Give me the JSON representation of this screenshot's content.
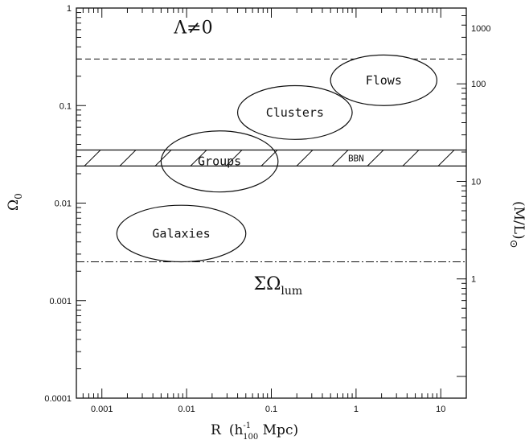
{
  "chart_data": {
    "type": "scatter",
    "xlabel_main": "R",
    "xlabel_unit_pre": "(h",
    "xlabel_unit_sup": "-1",
    "xlabel_unit_sub": "100",
    "xlabel_unit_post": " Mpc)",
    "ylabel_left": "Ω",
    "ylabel_left_sub": "0",
    "ylabel_right": "(M/L)",
    "ylabel_right_sub": "⊙",
    "x_scale": "log",
    "y_scale": "log",
    "xlim": [
      0.0005,
      20
    ],
    "ylim": [
      0.0001,
      1
    ],
    "x_ticks": [
      {
        "value": 0.001,
        "label": "0.001"
      },
      {
        "value": 0.01,
        "label": "0.01"
      },
      {
        "value": 0.1,
        "label": "0.1"
      },
      {
        "value": 1,
        "label": "1"
      },
      {
        "value": 10,
        "label": "10"
      }
    ],
    "y_ticks": [
      {
        "value": 0.0001,
        "label": "0.0001"
      },
      {
        "value": 0.001,
        "label": "0.001"
      },
      {
        "value": 0.01,
        "label": "0.01"
      },
      {
        "value": 0.1,
        "label": "0.1"
      },
      {
        "value": 1,
        "label": "1"
      }
    ],
    "right_axis": {
      "ticks": [
        {
          "omega": 0.00167,
          "label": "1"
        },
        {
          "omega": 0.0167,
          "label": "10"
        },
        {
          "omega": 0.167,
          "label": "100"
        },
        {
          "omega": 1.67,
          "label": "1000"
        }
      ]
    },
    "regions": [
      {
        "name": "Galaxies",
        "label": "Galaxies",
        "x_range": [
          0.0015,
          0.05
        ],
        "y_range": [
          0.0025,
          0.0095
        ]
      },
      {
        "name": "Groups",
        "label": "Groups",
        "x_range": [
          0.005,
          0.12
        ],
        "y_range": [
          0.013,
          0.055
        ]
      },
      {
        "name": "Clusters",
        "label": "Clusters",
        "x_range": [
          0.04,
          0.9
        ],
        "y_range": [
          0.045,
          0.16
        ]
      },
      {
        "name": "Flows",
        "label": "Flows",
        "x_range": [
          0.5,
          9
        ],
        "y_range": [
          0.1,
          0.33
        ]
      }
    ],
    "bands": [
      {
        "name": "BBN",
        "label": "BBN",
        "y_range": [
          0.024,
          0.035
        ],
        "hatched": true
      }
    ],
    "lines": [
      {
        "name": "lambda",
        "style": "dashed",
        "y": 0.3
      },
      {
        "name": "luminous",
        "style": "dash-dot",
        "y": 0.0025
      }
    ],
    "annotations": {
      "lambda_text": "Λ≠0",
      "luminous_text": "ΣΩ",
      "luminous_sub": "lum",
      "lambda_pos": {
        "x": 0.012,
        "y": 0.55
      },
      "luminous_pos": {
        "x": 0.12,
        "y": 0.0013
      }
    }
  }
}
